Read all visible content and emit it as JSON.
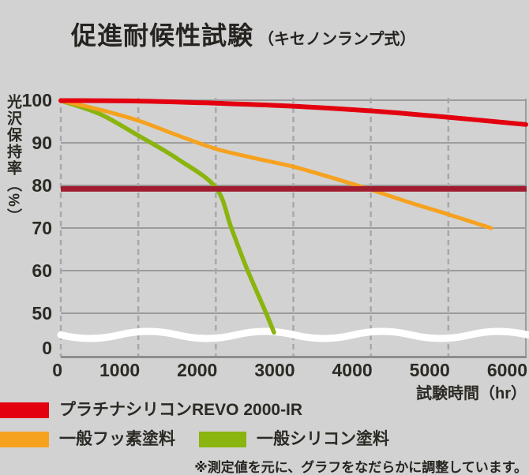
{
  "title": {
    "main": "促進耐候性試験",
    "sub": "（キセノンランプ式）"
  },
  "chart_data": {
    "type": "line",
    "title": "促進耐候性試験（キセノンランプ式）",
    "xlabel": "試験時間（hr）",
    "ylabel": "光沢保持率（%）",
    "x_ticks": [
      0,
      1000,
      2000,
      3000,
      4000,
      5000,
      6000
    ],
    "y_ticks": [
      100,
      90,
      80,
      70,
      60,
      50,
      0
    ],
    "xlim": [
      0,
      6000
    ],
    "ylim": [
      0,
      103
    ],
    "y_axis_break": {
      "between": [
        0,
        50
      ]
    },
    "grid": "on",
    "legend_position": "bottom-left",
    "series": [
      {
        "name": "プラチナシリコンREVO 2000-IR",
        "color": "#e3000f",
        "points": [
          [
            0,
            99.9
          ],
          [
            1000,
            99.8
          ],
          [
            2000,
            99.3
          ],
          [
            3000,
            98.6
          ],
          [
            4000,
            97.5
          ],
          [
            5000,
            96.0
          ],
          [
            6000,
            94.3
          ]
        ]
      },
      {
        "name": "一般フッ素塗料",
        "color": "#f6a21f",
        "points": [
          [
            0,
            99.9
          ],
          [
            500,
            97.8
          ],
          [
            1000,
            95.2
          ],
          [
            1500,
            91.8
          ],
          [
            2000,
            88.6
          ],
          [
            2500,
            86.4
          ],
          [
            3000,
            84.4
          ],
          [
            3500,
            81.8
          ],
          [
            4000,
            79.0
          ],
          [
            4500,
            76.0
          ],
          [
            5000,
            73.2
          ],
          [
            5550,
            70.0
          ]
        ]
      },
      {
        "name": "一般シリコン塗料",
        "color": "#8ab40e",
        "points": [
          [
            0,
            99.9
          ],
          [
            500,
            96.8
          ],
          [
            1000,
            91.7
          ],
          [
            1500,
            86.3
          ],
          [
            2000,
            79.5
          ],
          [
            2200,
            70.0
          ],
          [
            2400,
            60.5
          ],
          [
            2650,
            50.0
          ],
          [
            2750,
            45.5
          ]
        ]
      }
    ],
    "reference_line": {
      "value": 79.2,
      "color": "#a21c30"
    }
  },
  "legend": {
    "items": [
      {
        "label": "プラチナシリコンREVO 2000-IR",
        "color": "#e3000f"
      },
      {
        "label": "一般フッ素塗料",
        "color": "#f6a21f"
      },
      {
        "label": "一般シリコン塗料",
        "color": "#8ab40e"
      }
    ]
  },
  "note": "※測定値を元に、グラフをなだらかに調整しています。",
  "colors": {
    "background": "#d2d2d2",
    "grid_solid": "#9c9c9c",
    "grid_dashed": "#a8a8a8",
    "axis": "#8d8d8d",
    "axis_break_wave": "#ffffff",
    "text": "#2b2a25"
  }
}
